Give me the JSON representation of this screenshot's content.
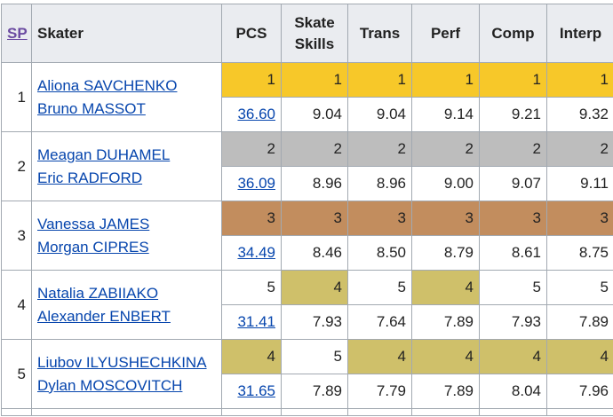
{
  "header": {
    "sp": "SP",
    "skater": "Skater",
    "pcs": "PCS",
    "skate_skills_1": "Skate",
    "skate_skills_2": "Skills",
    "trans": "Trans",
    "perf": "Perf",
    "comp": "Comp",
    "interp": "Interp"
  },
  "colors": {
    "gold": "#f7c829",
    "silver": "#bdbdbd",
    "bronze": "#c28d5e",
    "olive": "#cfc06a",
    "link": "#0645ad"
  },
  "rows": [
    {
      "rank": "1",
      "skater1": "Aliona SAVCHENKO",
      "skater2": "Bruno MASSOT",
      "ranks": [
        "1",
        "1",
        "1",
        "1",
        "1",
        "1"
      ],
      "pcs": "36.60",
      "scores": [
        "9.04",
        "9.04",
        "9.14",
        "9.21",
        "9.32"
      ]
    },
    {
      "rank": "2",
      "skater1": "Meagan DUHAMEL",
      "skater2": "Eric RADFORD",
      "ranks": [
        "2",
        "2",
        "2",
        "2",
        "2",
        "2"
      ],
      "pcs": "36.09",
      "scores": [
        "8.96",
        "8.96",
        "9.00",
        "9.07",
        "9.11"
      ]
    },
    {
      "rank": "3",
      "skater1": "Vanessa JAMES",
      "skater2": "Morgan CIPRES",
      "ranks": [
        "3",
        "3",
        "3",
        "3",
        "3",
        "3"
      ],
      "pcs": "34.49",
      "scores": [
        "8.46",
        "8.50",
        "8.79",
        "8.61",
        "8.75"
      ]
    },
    {
      "rank": "4",
      "skater1": "Natalia ZABIIAKO",
      "skater2": "Alexander ENBERT",
      "ranks": [
        "5",
        "4",
        "5",
        "4",
        "5",
        "5"
      ],
      "pcs": "31.41",
      "scores": [
        "7.93",
        "7.64",
        "7.89",
        "7.93",
        "7.89"
      ]
    },
    {
      "rank": "5",
      "skater1": "Liubov ILYUSHECHKINA",
      "skater2": "Dylan MOSCOVITCH",
      "ranks": [
        "4",
        "5",
        "4",
        "4",
        "4",
        "4"
      ],
      "pcs": "31.65",
      "scores": [
        "7.89",
        "7.79",
        "7.89",
        "8.04",
        "7.96"
      ]
    }
  ]
}
